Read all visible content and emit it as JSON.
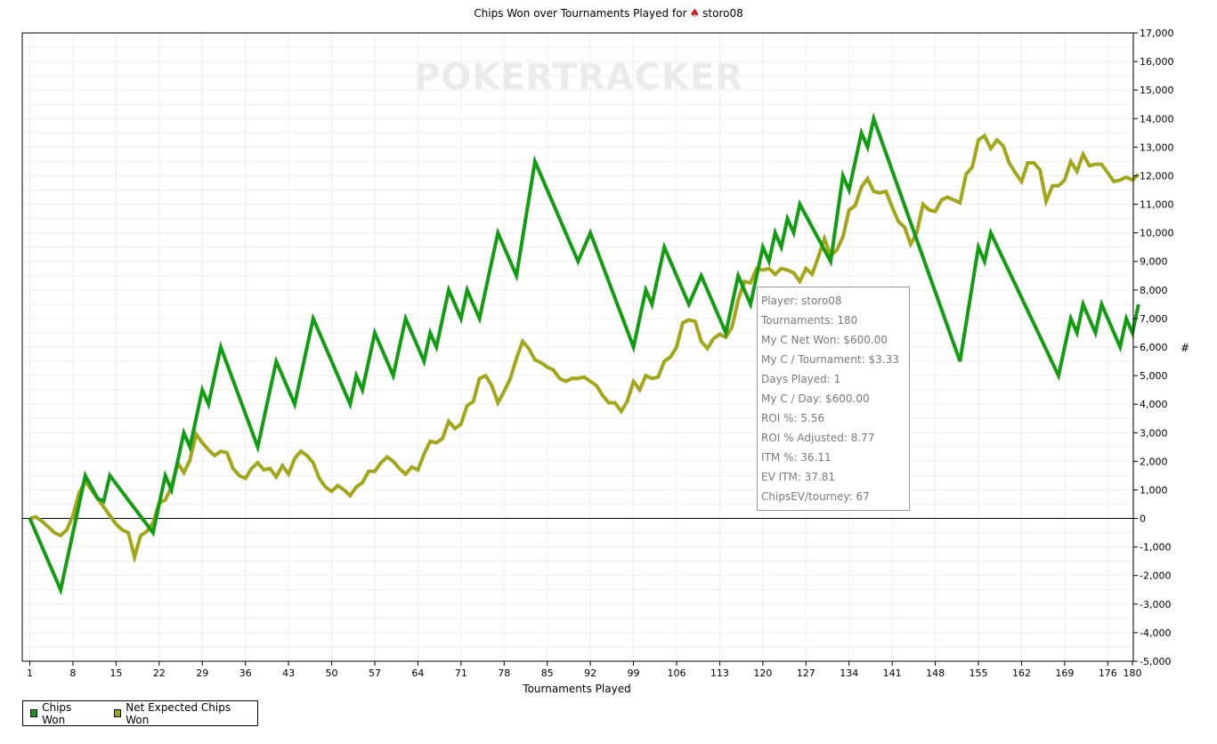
{
  "chart_data": {
    "type": "line",
    "title_prefix": "Chips Won over Tournaments Played for",
    "title_player": "storo08",
    "xlabel": "Tournaments Played",
    "ylabel": "#",
    "xlim": [
      1,
      180
    ],
    "ylim": [
      -5000,
      17000
    ],
    "x_ticks": [
      1,
      8,
      15,
      22,
      29,
      36,
      43,
      50,
      57,
      64,
      71,
      78,
      85,
      92,
      99,
      106,
      113,
      120,
      127,
      134,
      141,
      148,
      155,
      162,
      169,
      176,
      180
    ],
    "y_ticks": [
      -5000,
      -4000,
      -3000,
      -2000,
      -1000,
      0,
      1000,
      2000,
      3000,
      4000,
      5000,
      6000,
      7000,
      8000,
      9000,
      10000,
      11000,
      12000,
      13000,
      14000,
      15000,
      16000,
      17000
    ],
    "y_tick_labels": [
      "-5,000",
      "-4,000",
      "-3,000",
      "-2,000",
      "-1,000",
      "0",
      "1,000",
      "2,000",
      "3,000",
      "4,000",
      "5,000",
      "6,000",
      "7,000",
      "8,000",
      "9,000",
      "10,000",
      "11,000",
      "12,000",
      "13,000",
      "14,000",
      "15,000",
      "16,000",
      "17,000"
    ],
    "grid": true,
    "legend_position": "bottom-left",
    "series": [
      {
        "name": "Chips Won",
        "color": "#129c12",
        "points": [
          [
            1,
            0
          ],
          [
            6,
            -2500
          ],
          [
            10,
            1500
          ],
          [
            12,
            700
          ],
          [
            13,
            600
          ],
          [
            14,
            1500
          ],
          [
            21,
            -500
          ],
          [
            23,
            1500
          ],
          [
            24,
            1000
          ],
          [
            26,
            3000
          ],
          [
            27,
            2500
          ],
          [
            29,
            4500
          ],
          [
            30,
            4000
          ],
          [
            32,
            6000
          ],
          [
            38,
            2500
          ],
          [
            41,
            5500
          ],
          [
            44,
            4000
          ],
          [
            47,
            7000
          ],
          [
            53,
            4000
          ],
          [
            54,
            5000
          ],
          [
            55,
            4500
          ],
          [
            57,
            6500
          ],
          [
            60,
            5000
          ],
          [
            62,
            7000
          ],
          [
            65,
            5500
          ],
          [
            66,
            6500
          ],
          [
            67,
            6000
          ],
          [
            69,
            8000
          ],
          [
            71,
            7000
          ],
          [
            72,
            8000
          ],
          [
            74,
            7000
          ],
          [
            77,
            10000
          ],
          [
            80,
            8500
          ],
          [
            83,
            12500
          ],
          [
            90,
            9000
          ],
          [
            92,
            10000
          ],
          [
            99,
            6000
          ],
          [
            101,
            8000
          ],
          [
            102,
            7500
          ],
          [
            104,
            9500
          ],
          [
            108,
            7500
          ],
          [
            110,
            8500
          ],
          [
            114,
            6500
          ],
          [
            116,
            8500
          ],
          [
            118,
            7500
          ],
          [
            120,
            9500
          ],
          [
            121,
            9000
          ],
          [
            122,
            10000
          ],
          [
            123,
            9500
          ],
          [
            124,
            10500
          ],
          [
            125,
            10000
          ],
          [
            126,
            11000
          ],
          [
            131,
            9000
          ],
          [
            133,
            12000
          ],
          [
            134,
            11500
          ],
          [
            136,
            13500
          ],
          [
            137,
            13000
          ],
          [
            138,
            14000
          ],
          [
            152,
            5500
          ],
          [
            155,
            9500
          ],
          [
            156,
            9000
          ],
          [
            157,
            10000
          ],
          [
            168,
            5000
          ],
          [
            170,
            7000
          ],
          [
            171,
            6500
          ],
          [
            172,
            7500
          ],
          [
            174,
            6500
          ],
          [
            175,
            7500
          ],
          [
            178,
            6000
          ],
          [
            179,
            7000
          ],
          [
            180,
            6500
          ],
          [
            181,
            7500
          ]
        ]
      },
      {
        "name": "Net Expected Chips Won",
        "color": "#a3a618",
        "points": [
          [
            1,
            0
          ],
          [
            2,
            50
          ],
          [
            3,
            -100
          ],
          [
            4,
            -300
          ],
          [
            5,
            -500
          ],
          [
            6,
            -600
          ],
          [
            7,
            -400
          ],
          [
            8,
            100
          ],
          [
            9,
            900
          ],
          [
            10,
            1300
          ],
          [
            11,
            1000
          ],
          [
            12,
            700
          ],
          [
            13,
            400
          ],
          [
            14,
            100
          ],
          [
            15,
            -200
          ],
          [
            16,
            -400
          ],
          [
            17,
            -500
          ],
          [
            18,
            -1350
          ],
          [
            19,
            -600
          ],
          [
            20,
            -450
          ],
          [
            21,
            -150
          ],
          [
            22,
            550
          ],
          [
            23,
            650
          ],
          [
            24,
            1100
          ],
          [
            25,
            1950
          ],
          [
            26,
            1600
          ],
          [
            27,
            2050
          ],
          [
            28,
            2950
          ],
          [
            29,
            2650
          ],
          [
            30,
            2400
          ],
          [
            31,
            2200
          ],
          [
            32,
            2350
          ],
          [
            33,
            2300
          ],
          [
            34,
            1750
          ],
          [
            35,
            1500
          ],
          [
            36,
            1400
          ],
          [
            37,
            1750
          ],
          [
            38,
            1950
          ],
          [
            39,
            1700
          ],
          [
            40,
            1750
          ],
          [
            41,
            1450
          ],
          [
            42,
            1850
          ],
          [
            43,
            1550
          ],
          [
            44,
            2100
          ],
          [
            45,
            2350
          ],
          [
            46,
            2200
          ],
          [
            47,
            1950
          ],
          [
            48,
            1400
          ],
          [
            49,
            1100
          ],
          [
            50,
            950
          ],
          [
            51,
            1150
          ],
          [
            52,
            1000
          ],
          [
            53,
            800
          ],
          [
            54,
            1100
          ],
          [
            55,
            1250
          ],
          [
            56,
            1650
          ],
          [
            57,
            1650
          ],
          [
            58,
            1950
          ],
          [
            59,
            2150
          ],
          [
            60,
            2000
          ],
          [
            61,
            1750
          ],
          [
            62,
            1550
          ],
          [
            63,
            1800
          ],
          [
            64,
            1700
          ],
          [
            65,
            2250
          ],
          [
            66,
            2700
          ],
          [
            67,
            2650
          ],
          [
            68,
            2800
          ],
          [
            69,
            3400
          ],
          [
            70,
            3150
          ],
          [
            71,
            3300
          ],
          [
            72,
            3950
          ],
          [
            73,
            4100
          ],
          [
            74,
            4900
          ],
          [
            75,
            5000
          ],
          [
            76,
            4650
          ],
          [
            77,
            4050
          ],
          [
            78,
            4450
          ],
          [
            79,
            4900
          ],
          [
            80,
            5600
          ],
          [
            81,
            6200
          ],
          [
            82,
            5950
          ],
          [
            83,
            5550
          ],
          [
            84,
            5450
          ],
          [
            85,
            5300
          ],
          [
            86,
            5200
          ],
          [
            87,
            4900
          ],
          [
            88,
            4800
          ],
          [
            89,
            4900
          ],
          [
            90,
            4900
          ],
          [
            91,
            4950
          ],
          [
            92,
            4800
          ],
          [
            93,
            4650
          ],
          [
            94,
            4300
          ],
          [
            95,
            4050
          ],
          [
            96,
            4050
          ],
          [
            97,
            3750
          ],
          [
            98,
            4100
          ],
          [
            99,
            4800
          ],
          [
            100,
            4500
          ],
          [
            101,
            5000
          ],
          [
            102,
            4900
          ],
          [
            103,
            4950
          ],
          [
            104,
            5500
          ],
          [
            105,
            5650
          ],
          [
            106,
            6000
          ],
          [
            107,
            6850
          ],
          [
            108,
            6950
          ],
          [
            109,
            6900
          ],
          [
            110,
            6200
          ],
          [
            111,
            5950
          ],
          [
            112,
            6300
          ],
          [
            113,
            6450
          ],
          [
            114,
            6350
          ],
          [
            115,
            6700
          ],
          [
            116,
            7650
          ],
          [
            117,
            8300
          ],
          [
            118,
            8250
          ],
          [
            119,
            8750
          ],
          [
            120,
            8700
          ],
          [
            121,
            8750
          ],
          [
            122,
            8550
          ],
          [
            123,
            8750
          ],
          [
            124,
            8700
          ],
          [
            125,
            8600
          ],
          [
            126,
            8300
          ],
          [
            127,
            8750
          ],
          [
            128,
            8550
          ],
          [
            129,
            9150
          ],
          [
            130,
            9800
          ],
          [
            131,
            9200
          ],
          [
            132,
            9400
          ],
          [
            133,
            9850
          ],
          [
            134,
            10800
          ],
          [
            135,
            10950
          ],
          [
            136,
            11600
          ],
          [
            137,
            11900
          ],
          [
            138,
            11450
          ],
          [
            139,
            11400
          ],
          [
            140,
            11450
          ],
          [
            141,
            10900
          ],
          [
            142,
            10400
          ],
          [
            143,
            10200
          ],
          [
            144,
            9600
          ],
          [
            145,
            10000
          ],
          [
            146,
            11000
          ],
          [
            147,
            10800
          ],
          [
            148,
            10750
          ],
          [
            149,
            11150
          ],
          [
            150,
            11250
          ],
          [
            151,
            11150
          ],
          [
            152,
            11050
          ],
          [
            153,
            12050
          ],
          [
            154,
            12300
          ],
          [
            155,
            13250
          ],
          [
            156,
            13400
          ],
          [
            157,
            12950
          ],
          [
            158,
            13250
          ],
          [
            159,
            13050
          ],
          [
            160,
            12450
          ],
          [
            161,
            12100
          ],
          [
            162,
            11800
          ],
          [
            163,
            12450
          ],
          [
            164,
            12450
          ],
          [
            165,
            12200
          ],
          [
            166,
            11100
          ],
          [
            167,
            11650
          ],
          [
            168,
            11650
          ],
          [
            169,
            11850
          ],
          [
            170,
            12500
          ],
          [
            171,
            12150
          ],
          [
            172,
            12750
          ],
          [
            173,
            12350
          ],
          [
            174,
            12400
          ],
          [
            175,
            12400
          ],
          [
            176,
            12100
          ],
          [
            177,
            11800
          ],
          [
            178,
            11850
          ],
          [
            179,
            11950
          ],
          [
            180,
            11850
          ],
          [
            181,
            12050
          ]
        ]
      }
    ]
  },
  "watermark": "POKERTRACKER",
  "tooltip": {
    "rows": [
      "Player: storo08",
      "Tournaments: 180",
      "My C Net Won: $600.00",
      "My C / Tournament: $3.33",
      "Days Played: 1",
      "My C / Day: $600.00",
      "ROI %: 5.56",
      "ROI % Adjusted: 8.77",
      "ITM %: 36.11",
      "EV ITM: 37.81",
      "ChipsEV/tourney: 67"
    ]
  },
  "legend": {
    "items": [
      {
        "label": "Chips Won",
        "color": "#129c12"
      },
      {
        "label": "Net Expected Chips Won",
        "color": "#a3a618"
      }
    ]
  }
}
